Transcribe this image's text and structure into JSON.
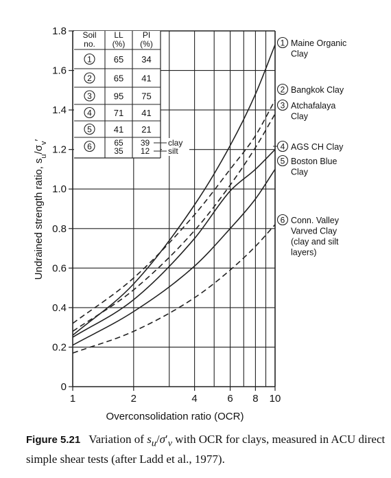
{
  "chart_data": {
    "type": "line",
    "xscale": "log",
    "xlim": [
      1,
      10
    ],
    "ylim": [
      0,
      1.8
    ],
    "xlabel": "Overconsolidation ratio (OCR)",
    "ylabel": "Undrained strength ratio, s",
    "ylabel_sub": "u",
    "ylabel_tail": "/σ",
    "ylabel_sub2": "v",
    "ylabel_prime": "′",
    "xticks": [
      1,
      2,
      4,
      6,
      8,
      10
    ],
    "xtick_labels": [
      "1",
      "2",
      "4",
      "6",
      "8",
      "10"
    ],
    "yticks": [
      0,
      0.2,
      0.4,
      0.6,
      0.8,
      1.0,
      1.2,
      1.4,
      1.6,
      1.8
    ],
    "ytick_labels": [
      "0",
      "0.2",
      "0.4",
      "0.6",
      "0.8",
      "1.0",
      "1.2",
      "1.4",
      "1.6",
      "1.8"
    ],
    "series": [
      {
        "id": "1",
        "dash": "solid",
        "x": [
          1,
          2,
          4,
          6,
          8,
          10
        ],
        "y": [
          0.26,
          0.52,
          0.92,
          1.22,
          1.48,
          1.73
        ]
      },
      {
        "id": "2",
        "dash": "dashed",
        "x": [
          1,
          2,
          4,
          6,
          8,
          10
        ],
        "y": [
          0.32,
          0.55,
          0.87,
          1.1,
          1.27,
          1.45
        ]
      },
      {
        "id": "3",
        "dash": "dashed",
        "x": [
          1,
          2,
          4,
          6,
          8,
          10
        ],
        "y": [
          0.28,
          0.49,
          0.79,
          1.02,
          1.21,
          1.38
        ]
      },
      {
        "id": "4",
        "dash": "solid",
        "x": [
          1,
          2,
          4,
          6,
          8,
          10
        ],
        "y": [
          0.25,
          0.44,
          0.75,
          0.99,
          1.1,
          1.2
        ]
      },
      {
        "id": "5",
        "dash": "solid",
        "x": [
          1,
          2,
          4,
          6,
          8,
          10
        ],
        "y": [
          0.21,
          0.38,
          0.61,
          0.8,
          0.95,
          1.1
        ]
      },
      {
        "id": "6",
        "dash": "dashed",
        "x": [
          1,
          2,
          4,
          6,
          8,
          10
        ],
        "y": [
          0.17,
          0.28,
          0.45,
          0.59,
          0.71,
          0.82
        ]
      }
    ],
    "table": {
      "headers": [
        [
          "Soil",
          "no."
        ],
        [
          "LL",
          "(%)"
        ],
        [
          "PI",
          "(%)"
        ]
      ],
      "rows": [
        {
          "no": "1",
          "ll": "65",
          "pi": "34"
        },
        {
          "no": "2",
          "ll": "65",
          "pi": "41"
        },
        {
          "no": "3",
          "ll": "95",
          "pi": "75"
        },
        {
          "no": "4",
          "ll": "71",
          "pi": "41"
        },
        {
          "no": "5",
          "ll": "41",
          "pi": "21"
        },
        {
          "no": "6",
          "ll": "65",
          "ll2": "35",
          "pi": "39",
          "pi2": "12",
          "tag": "clay",
          "tag2": "silt"
        }
      ]
    },
    "labels": [
      {
        "no": "1",
        "lines": [
          "Maine Organic",
          "Clay"
        ]
      },
      {
        "no": "2",
        "lines": [
          "Bangkok Clay"
        ]
      },
      {
        "no": "3",
        "lines": [
          "Atchafalaya",
          "Clay"
        ]
      },
      {
        "no": "4",
        "lines": [
          "AGS CH Clay"
        ]
      },
      {
        "no": "5",
        "lines": [
          "Boston Blue",
          "Clay"
        ]
      },
      {
        "no": "6",
        "lines": [
          "Conn. Valley",
          "Varved Clay",
          "(clay and silt",
          "layers)"
        ]
      }
    ]
  },
  "caption": {
    "figure": "Figure 5.21",
    "text_before": "Variation of ",
    "s": "s",
    "s_sub": "u",
    "slash": "/",
    "sigma": "σ",
    "prime": "′",
    "sigma_sub": "v",
    "text_after": " with OCR for clays, measured in ACU direct simple shear tests (after Ladd et al., 1977)."
  }
}
